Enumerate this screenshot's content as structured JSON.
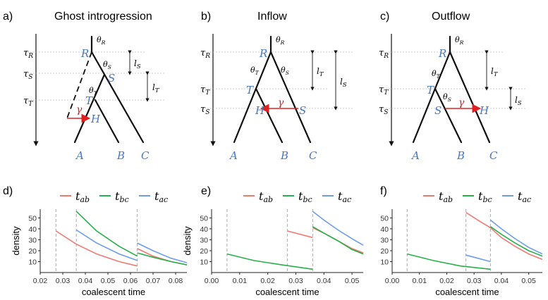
{
  "panels_top": [
    {
      "tag": "a)",
      "title": "Ghost introgression",
      "taus": [
        "τR",
        "τS",
        "τT"
      ],
      "thetas": [
        "θR",
        "θS",
        "θT"
      ],
      "nodes": [
        "R",
        "S",
        "T",
        "H"
      ],
      "tips": [
        "A",
        "B",
        "C"
      ],
      "gamma": "γ",
      "ls": "lS",
      "lt": "lT"
    },
    {
      "tag": "b)",
      "title": "Inflow",
      "taus": [
        "τR",
        "τT",
        "τS"
      ],
      "thetas": [
        "θR",
        "θT",
        "θS"
      ],
      "nodes": [
        "R",
        "T",
        "H",
        "S"
      ],
      "tips": [
        "A",
        "B",
        "C"
      ],
      "gamma": "γ",
      "lt": "lT",
      "ls": "lS"
    },
    {
      "tag": "c)",
      "title": "Outflow",
      "taus": [
        "τR",
        "τT",
        "τS"
      ],
      "thetas": [
        "θR",
        "θT",
        "θS"
      ],
      "nodes": [
        "R",
        "T",
        "S",
        "H"
      ],
      "tips": [
        "A",
        "B",
        "C"
      ],
      "gamma": "γ",
      "lt": "lT",
      "ls": "lS"
    }
  ],
  "legend": {
    "tab": "t",
    "tab_sub": "ab",
    "tbc": "t",
    "tbc_sub": "bc",
    "tac": "t",
    "tac_sub": "ac"
  },
  "colors": {
    "tab": "#f07a72",
    "tbc": "#27b04a",
    "tac": "#6b9cf0",
    "node": "#4a78c0",
    "gamma": "#e02020"
  },
  "chart_data": [
    {
      "type": "line",
      "tag": "d)",
      "xlabel": "coalescent time",
      "ylabel": "density",
      "xlim": [
        0.02,
        0.085
      ],
      "ylim": [
        0,
        58
      ],
      "xticks": [
        "0.02",
        "0.03",
        "0.04",
        "0.05",
        "0.06",
        "0.07",
        "0.08"
      ],
      "yticks": [
        "10",
        "20",
        "30",
        "40",
        "50"
      ],
      "vlines": [
        0.027,
        0.036,
        0.063
      ],
      "series": [
        {
          "name": "tab",
          "segments": [
            [
              [
                0.027,
                38
              ],
              [
                0.036,
                26
              ],
              [
                0.045,
                17
              ],
              [
                0.055,
                10
              ],
              [
                0.063,
                6
              ]
            ],
            [
              [
                0.063,
                22
              ],
              [
                0.07,
                15
              ],
              [
                0.078,
                10
              ],
              [
                0.085,
                7
              ]
            ]
          ]
        },
        {
          "name": "tbc",
          "segments": [
            [
              [
                0.036,
                56
              ],
              [
                0.045,
                38
              ],
              [
                0.055,
                24
              ],
              [
                0.063,
                15
              ]
            ],
            [
              [
                0.063,
                18
              ],
              [
                0.07,
                14
              ],
              [
                0.078,
                10
              ],
              [
                0.085,
                7
              ]
            ]
          ]
        },
        {
          "name": "tac",
          "segments": [
            [
              [
                0.036,
                39
              ],
              [
                0.045,
                27
              ],
              [
                0.055,
                17
              ],
              [
                0.063,
                11
              ]
            ],
            [
              [
                0.063,
                27
              ],
              [
                0.07,
                20
              ],
              [
                0.078,
                13
              ],
              [
                0.085,
                9
              ]
            ]
          ]
        }
      ]
    },
    {
      "type": "line",
      "tag": "e)",
      "xlabel": "coalescent time",
      "ylabel": "density",
      "xlim": [
        0,
        0.054
      ],
      "ylim": [
        0,
        58
      ],
      "xticks": [
        "0.00",
        "0.01",
        "0.02",
        "0.03",
        "0.04",
        "0.05"
      ],
      "yticks": [
        "10",
        "20",
        "30",
        "40",
        "50"
      ],
      "vlines": [
        0.0055,
        0.027,
        0.036
      ],
      "series": [
        {
          "name": "tab",
          "segments": [
            [
              [
                0.027,
                38
              ],
              [
                0.036,
                32
              ]
            ],
            [
              [
                0.036,
                41
              ],
              [
                0.04,
                36
              ],
              [
                0.045,
                29
              ],
              [
                0.05,
                22
              ],
              [
                0.054,
                18
              ]
            ]
          ]
        },
        {
          "name": "tbc",
          "segments": [
            [
              [
                0.0055,
                17
              ],
              [
                0.015,
                11
              ],
              [
                0.025,
                7
              ],
              [
                0.036,
                3
              ]
            ],
            [
              [
                0.036,
                42
              ],
              [
                0.04,
                36
              ],
              [
                0.045,
                29
              ],
              [
                0.05,
                21
              ],
              [
                0.054,
                17
              ]
            ]
          ]
        },
        {
          "name": "tac",
          "segments": [
            [
              [
                0.036,
                56
              ],
              [
                0.04,
                48
              ],
              [
                0.045,
                39
              ],
              [
                0.05,
                31
              ],
              [
                0.054,
                25
              ]
            ]
          ]
        }
      ]
    },
    {
      "type": "line",
      "tag": "f)",
      "xlabel": "coalescent time",
      "ylabel": "",
      "xlim": [
        0,
        0.055
      ],
      "ylim": [
        0,
        58
      ],
      "xticks": [
        "0.00",
        "0.01",
        "0.02",
        "0.03",
        "0.04",
        "0.05"
      ],
      "yticks": [
        "10",
        "20",
        "30",
        "40",
        "50"
      ],
      "vlines": [
        0.0055,
        0.027,
        0.036
      ],
      "series": [
        {
          "name": "tab",
          "segments": [
            [
              [
                0.027,
                55
              ],
              [
                0.032,
                47
              ],
              [
                0.036,
                41
              ],
              [
                0.04,
                32
              ],
              [
                0.045,
                24
              ],
              [
                0.05,
                17
              ],
              [
                0.055,
                12
              ]
            ]
          ]
        },
        {
          "name": "tbc",
          "segments": [
            [
              [
                0.0055,
                17
              ],
              [
                0.015,
                11
              ],
              [
                0.025,
                6
              ],
              [
                0.036,
                3
              ]
            ],
            [
              [
                0.036,
                42
              ],
              [
                0.04,
                35
              ],
              [
                0.045,
                27
              ],
              [
                0.05,
                20
              ],
              [
                0.055,
                15
              ]
            ]
          ]
        },
        {
          "name": "tac",
          "segments": [
            [
              [
                0.027,
                16
              ],
              [
                0.036,
                10
              ]
            ],
            [
              [
                0.036,
                48
              ],
              [
                0.04,
                40
              ],
              [
                0.045,
                31
              ],
              [
                0.05,
                23
              ],
              [
                0.055,
                17
              ]
            ]
          ]
        }
      ]
    }
  ]
}
